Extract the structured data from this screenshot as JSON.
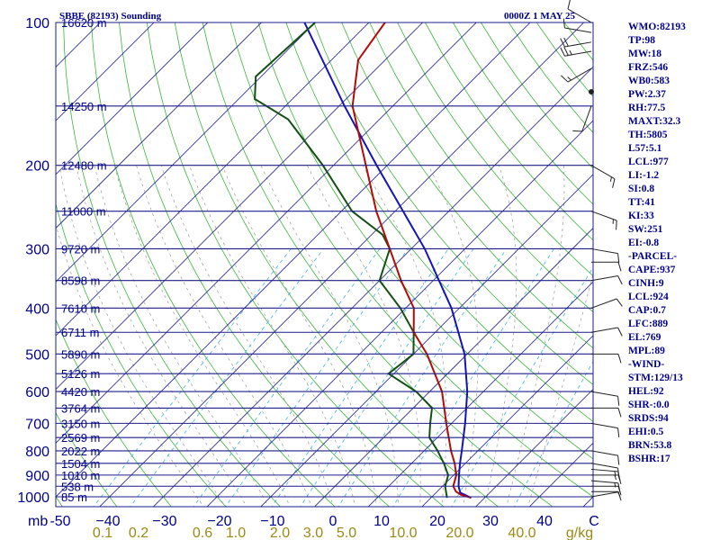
{
  "header": {
    "station": "SBBE (82193) Sounding",
    "time": "0000Z  1 MAY 25"
  },
  "indices": [
    "WMO:82193",
    "TP:98",
    "MW:18",
    "FRZ:546",
    "WB0:583",
    "PW:2.37",
    "RH:77.5",
    "MAXT:32.3",
    "TH:5805",
    "L57:5.1",
    "LCL:977",
    "LI:-1.2",
    "SI:0.8",
    "TT:41",
    "KI:33",
    "SW:251",
    "EI:-0.8",
    "-PARCEL-",
    "CAPE:937",
    "CINH:9",
    "LCL:924",
    "CAP:0.7",
    "LFC:889",
    "EL:769",
    "MPL:89",
    "-WIND-",
    "STM:129/13",
    "HEL:92",
    "SHR-:0.0",
    "SRDS:94",
    "EHI:0.5",
    "BRN:53.8",
    "BSHR:17"
  ],
  "chart_data": {
    "type": "skew-t log-p sounding",
    "y_axis_label": "mb",
    "pressure_ticks": [
      100,
      200,
      300,
      400,
      500,
      600,
      700,
      800,
      900,
      1000
    ],
    "pressure_range": [
      1050,
      100
    ],
    "temperature_ticks": [
      "-50",
      "−40",
      "−30",
      "−20",
      "−10",
      "0",
      "10",
      "20",
      "30",
      "40",
      "C"
    ],
    "temperature_range": [
      -50,
      50
    ],
    "mixing_ratio_ticks": [
      "0.1",
      "0.2",
      "0.6",
      "1.0",
      "2.0",
      "3.0",
      "5.0",
      "10.0",
      "20.0",
      "40.0"
    ],
    "mixing_ratio_unit": "g/kg",
    "height_levels": [
      {
        "p": 100,
        "label": "16620 m"
      },
      {
        "p": 150,
        "label": "14250 m"
      },
      {
        "p": 200,
        "label": "12480 m"
      },
      {
        "p": 250,
        "label": "11000 m"
      },
      {
        "p": 300,
        "label": "9720 m"
      },
      {
        "p": 350,
        "label": "8598 m"
      },
      {
        "p": 400,
        "label": "7610 m"
      },
      {
        "p": 450,
        "label": "6711 m"
      },
      {
        "p": 500,
        "label": "5890 m"
      },
      {
        "p": 550,
        "label": "5126 m"
      },
      {
        "p": 600,
        "label": "4420 m"
      },
      {
        "p": 650,
        "label": "3764 m"
      },
      {
        "p": 700,
        "label": "3150 m"
      },
      {
        "p": 750,
        "label": "2569 m"
      },
      {
        "p": 800,
        "label": "2022 m"
      },
      {
        "p": 850,
        "label": "1504 m"
      },
      {
        "p": 900,
        "label": "1010 m"
      },
      {
        "p": 950,
        "label": "538 m"
      },
      {
        "p": 1000,
        "label": "85 m"
      }
    ],
    "temperature_profile": [
      {
        "p": 1005,
        "t": 27.5
      },
      {
        "p": 990,
        "t": 25.0
      },
      {
        "p": 975,
        "t": 23.5
      },
      {
        "p": 950,
        "t": 22.0
      },
      {
        "p": 900,
        "t": 20.5
      },
      {
        "p": 850,
        "t": 18.0
      },
      {
        "p": 800,
        "t": 15.0
      },
      {
        "p": 700,
        "t": 9.0
      },
      {
        "p": 600,
        "t": 2.3
      },
      {
        "p": 500,
        "t": -7.5
      },
      {
        "p": 450,
        "t": -14.0
      },
      {
        "p": 400,
        "t": -18.5
      },
      {
        "p": 350,
        "t": -26.0
      },
      {
        "p": 300,
        "t": -34.0
      },
      {
        "p": 250,
        "t": -43.5
      },
      {
        "p": 200,
        "t": -54.0
      },
      {
        "p": 150,
        "t": -67.5
      },
      {
        "p": 120,
        "t": -75.0
      },
      {
        "p": 100,
        "t": -77.0
      }
    ],
    "dewpoint_profile": [
      {
        "p": 1005,
        "t": 23.0
      },
      {
        "p": 950,
        "t": 20.5
      },
      {
        "p": 900,
        "t": 19.0
      },
      {
        "p": 850,
        "t": 16.0
      },
      {
        "p": 800,
        "t": 12.5
      },
      {
        "p": 750,
        "t": 8.5
      },
      {
        "p": 700,
        "t": 6.0
      },
      {
        "p": 650,
        "t": 3.5
      },
      {
        "p": 600,
        "t": -2.5
      },
      {
        "p": 550,
        "t": -11.0
      },
      {
        "p": 500,
        "t": -10.0
      },
      {
        "p": 450,
        "t": -14.0
      },
      {
        "p": 400,
        "t": -21.0
      },
      {
        "p": 350,
        "t": -30.0
      },
      {
        "p": 300,
        "t": -34.0
      },
      {
        "p": 280,
        "t": -38.0
      },
      {
        "p": 250,
        "t": -48.0
      },
      {
        "p": 200,
        "t": -62.0
      },
      {
        "p": 160,
        "t": -77.0
      },
      {
        "p": 145,
        "t": -87.0
      },
      {
        "p": 130,
        "t": -91.0
      },
      {
        "p": 100,
        "t": -90.0
      }
    ],
    "parcel_profile": [
      {
        "p": 1005,
        "t": 27.5
      },
      {
        "p": 980,
        "t": 24.5
      },
      {
        "p": 950,
        "t": 23.0
      },
      {
        "p": 900,
        "t": 21.0
      },
      {
        "p": 850,
        "t": 19.0
      },
      {
        "p": 800,
        "t": 17.0
      },
      {
        "p": 700,
        "t": 12.5
      },
      {
        "p": 600,
        "t": 7.0
      },
      {
        "p": 500,
        "t": -0.5
      },
      {
        "p": 400,
        "t": -11.5
      },
      {
        "p": 300,
        "t": -27.5
      },
      {
        "p": 250,
        "t": -38.5
      },
      {
        "p": 200,
        "t": -52.0
      },
      {
        "p": 150,
        "t": -69.0
      },
      {
        "p": 100,
        "t": -92.0
      }
    ],
    "wind_barbs": [
      {
        "p": 1000,
        "dir": 80,
        "spd": 5
      },
      {
        "p": 975,
        "dir": 90,
        "spd": 10
      },
      {
        "p": 950,
        "dir": 90,
        "spd": 10
      },
      {
        "p": 925,
        "dir": 95,
        "spd": 15
      },
      {
        "p": 900,
        "dir": 90,
        "spd": 15
      },
      {
        "p": 875,
        "dir": 95,
        "spd": 15
      },
      {
        "p": 850,
        "dir": 100,
        "spd": 10
      },
      {
        "p": 800,
        "dir": 100,
        "spd": 10
      },
      {
        "p": 700,
        "dir": 100,
        "spd": 10
      },
      {
        "p": 650,
        "dir": 90,
        "spd": 10
      },
      {
        "p": 600,
        "dir": 100,
        "spd": 10
      },
      {
        "p": 500,
        "dir": 90,
        "spd": 10
      },
      {
        "p": 450,
        "dir": 80,
        "spd": 10
      },
      {
        "p": 400,
        "dir": 70,
        "spd": 10
      },
      {
        "p": 350,
        "dir": 80,
        "spd": 10
      },
      {
        "p": 320,
        "dir": 90,
        "spd": 10
      },
      {
        "p": 300,
        "dir": 100,
        "spd": 10
      },
      {
        "p": 250,
        "dir": 110,
        "spd": 15
      },
      {
        "p": 200,
        "dir": 120,
        "spd": 15
      },
      {
        "p": 150,
        "dir": 200,
        "spd": 10
      },
      {
        "p": 140,
        "dir": 0,
        "spd": 0
      },
      {
        "p": 125,
        "dir": 240,
        "spd": 15
      },
      {
        "p": 115,
        "dir": 260,
        "spd": 25
      },
      {
        "p": 110,
        "dir": 260,
        "spd": 20
      },
      {
        "p": 105,
        "dir": 280,
        "spd": 10
      },
      {
        "p": 100,
        "dir": 300,
        "spd": 10
      }
    ],
    "legend": "none",
    "grid": "on"
  }
}
